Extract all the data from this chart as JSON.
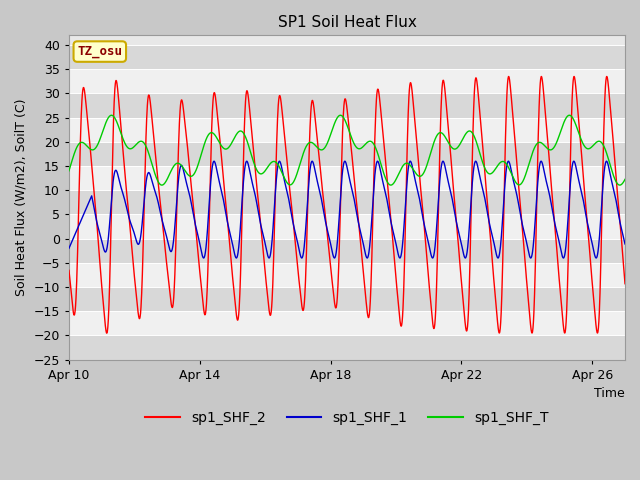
{
  "title": "SP1 Soil Heat Flux",
  "xlabel": "Time",
  "ylabel": "Soil Heat Flux (W/m2), SoilT (C)",
  "ylim": [
    -25,
    42
  ],
  "yticks": [
    -25,
    -20,
    -15,
    -10,
    -5,
    0,
    5,
    10,
    15,
    20,
    25,
    30,
    35,
    40
  ],
  "xlim_start": 0,
  "xlim_end": 17,
  "xtick_positions": [
    0,
    4,
    8,
    12,
    16
  ],
  "xtick_labels": [
    "Apr 10",
    "Apr 14",
    "Apr 18",
    "Apr 22",
    "Apr 26"
  ],
  "annotation_text": "TZ_osu",
  "annotation_bg": "#ffffcc",
  "annotation_border": "#ccaa00",
  "line_colors": [
    "#ff0000",
    "#0000cc",
    "#00cc00"
  ],
  "line_labels": [
    "sp1_SHF_2",
    "sp1_SHF_1",
    "sp1_SHF_T"
  ],
  "fig_bg": "#c8c8c8",
  "plot_bg": "#e8e8e8",
  "band_light": "#f0f0f0",
  "band_dark": "#d8d8d8",
  "grid_color": "#ffffff",
  "title_fontsize": 11,
  "label_fontsize": 9,
  "tick_fontsize": 9,
  "legend_fontsize": 10
}
